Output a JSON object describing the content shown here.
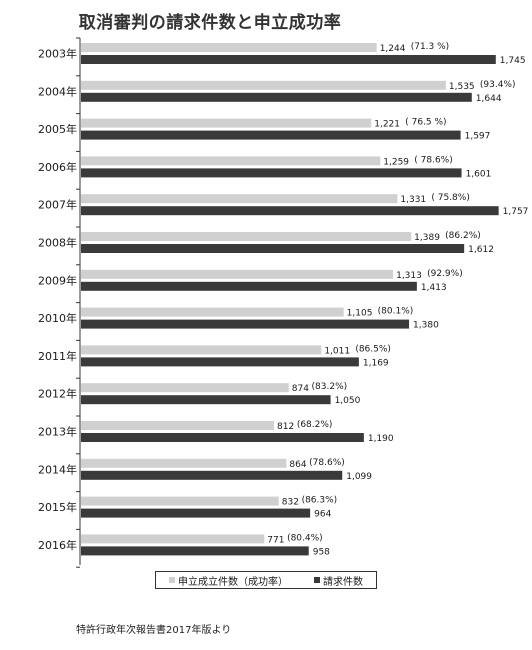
{
  "chart_data": {
    "type": "bar",
    "orientation": "horizontal",
    "title": "取消審判の請求件数と申立成功率",
    "categories": [
      "2003年",
      "2004年",
      "2005年",
      "2006年",
      "2007年",
      "2008年",
      "2009年",
      "2010年",
      "2011年",
      "2012年",
      "2013年",
      "2014年",
      "2015年",
      "2016年"
    ],
    "series": [
      {
        "name": "申立成立件数（成功率）",
        "color": "#d0d0d0",
        "values": [
          1244,
          1535,
          1221,
          1259,
          1331,
          1389,
          1313,
          1105,
          1011,
          874,
          812,
          864,
          832,
          771
        ],
        "value_labels": [
          "1,244",
          "1,535",
          "1,221",
          "1,259",
          "1,331",
          "1,389",
          "1,313",
          "1,105",
          "1,011",
          "874",
          "812",
          "864",
          "832",
          "771"
        ],
        "rate_labels": [
          "(71.3 %)",
          "(93.4%)",
          "( 76.5 %)",
          "( 78.6%)",
          "( 75.8%)",
          "(86.2%)",
          "(92.9%)",
          "(80.1%)",
          "(86.5%)",
          "(83.2%)",
          "(68.2%)",
          "(78.6%)",
          "(86.3%)",
          "(80.4%)"
        ]
      },
      {
        "name": "請求件数",
        "color": "#3a3a3a",
        "values": [
          1745,
          1644,
          1597,
          1601,
          1757,
          1612,
          1413,
          1380,
          1169,
          1050,
          1190,
          1099,
          964,
          958
        ],
        "value_labels": [
          "1,745",
          "1,644",
          "1,597",
          "1,601",
          "1,757",
          "1,612",
          "1,413",
          "1,380",
          "1,169",
          "1,050",
          "1,190",
          "1,099",
          "964",
          "958"
        ]
      }
    ],
    "xlim": [
      0,
      1830
    ],
    "grid": false,
    "legend_position": "bottom"
  },
  "source_note": "特許行政年次報告書2017年版より"
}
